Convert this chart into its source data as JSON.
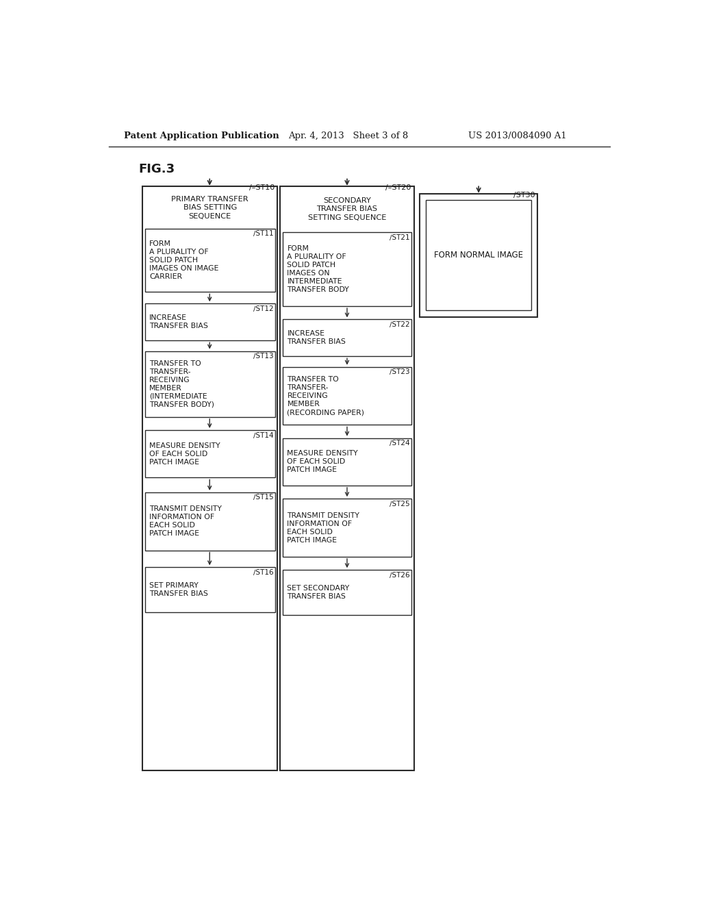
{
  "header_left": "Patent Application Publication",
  "header_mid": "Apr. 4, 2013   Sheet 3 of 8",
  "header_right": "US 2013/0084090 A1",
  "fig_label": "FIG.3",
  "bg_color": "#ffffff",
  "line_color": "#2a2a2a",
  "text_color": "#1a1a1a",
  "col1_label": "ST10",
  "col1_title": "PRIMARY TRANSFER\nBIAS SETTING\nSEQUENCE",
  "col1_steps": [
    {
      "label": "ST11",
      "text": "FORM\nA PLURALITY OF\nSOLID PATCH\nIMAGES ON IMAGE\nCARRIER"
    },
    {
      "label": "ST12",
      "text": "INCREASE\nTRANSFER BIAS"
    },
    {
      "label": "ST13",
      "text": "TRANSFER TO\nTRANSFER-\nRECEIVING\nMEMBER\n(INTERMEDIATE\nTRANSFER BODY)"
    },
    {
      "label": "ST14",
      "text": "MEASURE DENSITY\nOF EACH SOLID\nPATCH IMAGE"
    },
    {
      "label": "ST15",
      "text": "TRANSMIT DENSITY\nINFORMATION OF\nEACH SOLID\nPATCH IMAGE"
    },
    {
      "label": "ST16",
      "text": "SET PRIMARY\nTRANSFER BIAS"
    }
  ],
  "col2_label": "ST20",
  "col2_title": "SECONDARY\nTRANSFER BIAS\nSETTING SEQUENCE",
  "col2_steps": [
    {
      "label": "ST21",
      "text": "FORM\nA PLURALITY OF\nSOLID PATCH\nIMAGES ON\nINTERMEDIATE\nTRANSFER BODY"
    },
    {
      "label": "ST22",
      "text": "INCREASE\nTRANSFER BIAS"
    },
    {
      "label": "ST23",
      "text": "TRANSFER TO\nTRANSFER-\nRECEIVING\nMEMBER\n(RECORDING PAPER)"
    },
    {
      "label": "ST24",
      "text": "MEASURE DENSITY\nOF EACH SOLID\nPATCH IMAGE"
    },
    {
      "label": "ST25",
      "text": "TRANSMIT DENSITY\nINFORMATION OF\nEACH SOLID\nPATCH IMAGE"
    },
    {
      "label": "ST26",
      "text": "SET SECONDARY\nTRANSFER BIAS"
    }
  ],
  "col3_label": "ST30",
  "col3_text": "FORM NORMAL IMAGE"
}
